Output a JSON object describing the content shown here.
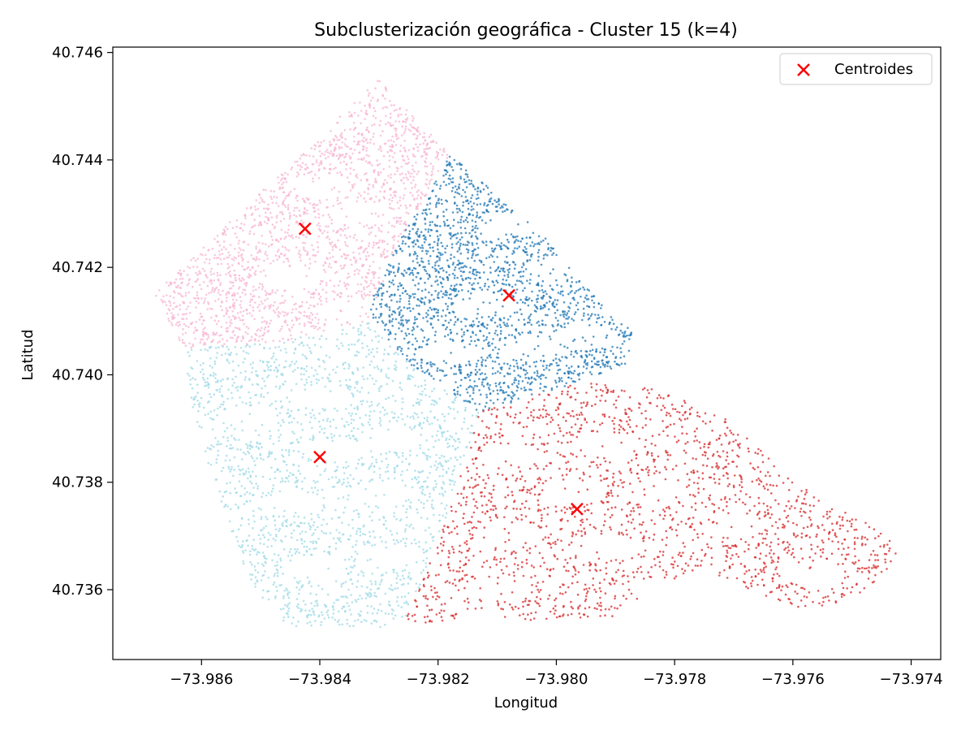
{
  "chart_data": {
    "type": "scatter",
    "title": "Subclusterización geográfica - Cluster 15 (k=4)",
    "xlabel": "Longitud",
    "ylabel": "Latitud",
    "xlim": [
      -73.9875,
      -73.9735
    ],
    "ylim": [
      40.7347,
      40.7461
    ],
    "x_ticks": [
      -73.986,
      -73.984,
      -73.982,
      -73.98,
      -73.978,
      -73.976,
      -73.974
    ],
    "x_tick_labels": [
      "−73.986",
      "−73.984",
      "−73.982",
      "−73.980",
      "−73.978",
      "−73.976",
      "−73.974"
    ],
    "y_ticks": [
      40.736,
      40.738,
      40.74,
      40.742,
      40.744,
      40.746
    ],
    "y_tick_labels": [
      "40.736",
      "40.738",
      "40.740",
      "40.742",
      "40.744",
      "40.746"
    ],
    "grid": false,
    "legend": {
      "position": "top-right",
      "entries": [
        "Centroides"
      ]
    },
    "clusters": [
      {
        "color": "#f7b6d2",
        "polygon": [
          [
            -73.9868,
            40.7415
          ],
          [
            -73.983,
            40.7455
          ],
          [
            -73.9818,
            40.7441
          ],
          [
            -73.9826,
            40.7426
          ],
          [
            -73.9832,
            40.741
          ],
          [
            -73.9847,
            40.7406
          ],
          [
            -73.9863,
            40.7405
          ]
        ],
        "holes": [
          [
            -73.984,
            40.7435
          ],
          [
            -73.9833,
            40.743
          ],
          [
            -73.9845,
            40.7418
          ],
          [
            -73.9835,
            40.7412
          ],
          [
            -73.9825,
            40.742
          ]
        ]
      },
      {
        "color": "#1f77b4",
        "polygon": [
          [
            -73.9818,
            40.7441
          ],
          [
            -73.9803,
            40.7427
          ],
          [
            -73.979,
            40.741
          ],
          [
            -73.9787,
            40.7409
          ],
          [
            -73.9788,
            40.7402
          ],
          [
            -73.9798,
            40.7398
          ],
          [
            -73.9813,
            40.7393
          ],
          [
            -73.9826,
            40.7403
          ],
          [
            -73.9832,
            40.7412
          ],
          [
            -73.9826,
            40.7426
          ]
        ],
        "holes": [
          [
            -73.9808,
            40.7428
          ],
          [
            -73.98,
            40.742
          ],
          [
            -73.9812,
            40.7413
          ],
          [
            -73.9805,
            40.7405
          ],
          [
            -73.9795,
            40.7407
          ],
          [
            -73.9818,
            40.7404
          ]
        ]
      },
      {
        "color": "#9edae5",
        "polygon": [
          [
            -73.9863,
            40.7405
          ],
          [
            -73.9847,
            40.7406
          ],
          [
            -73.9832,
            40.741
          ],
          [
            -73.9826,
            40.7403
          ],
          [
            -73.9813,
            40.7393
          ],
          [
            -73.9815,
            40.7386
          ],
          [
            -73.9817,
            40.7378
          ],
          [
            -73.9823,
            40.7361
          ],
          [
            -73.9826,
            40.7353
          ],
          [
            -73.9835,
            40.7353
          ],
          [
            -73.9846,
            40.7353
          ],
          [
            -73.9852,
            40.7362
          ],
          [
            -73.9858,
            40.738
          ],
          [
            -73.9862,
            40.7396
          ]
        ],
        "holes": [
          [
            -73.9852,
            40.7392
          ],
          [
            -73.984,
            40.7396
          ],
          [
            -73.9838,
            40.7386
          ],
          [
            -73.9828,
            40.7388
          ],
          [
            -73.9845,
            40.7376
          ],
          [
            -73.983,
            40.7378
          ],
          [
            -73.984,
            40.7364
          ],
          [
            -73.9828,
            40.7366
          ]
        ]
      },
      {
        "color": "#d62728",
        "polygon": [
          [
            -73.9813,
            40.7393
          ],
          [
            -73.9798,
            40.7398
          ],
          [
            -73.9788,
            40.7399
          ],
          [
            -73.9773,
            40.7393
          ],
          [
            -73.9769,
            40.739
          ],
          [
            -73.976,
            40.738
          ],
          [
            -73.9748,
            40.7373
          ],
          [
            -73.9742,
            40.7368
          ],
          [
            -73.9745,
            40.7362
          ],
          [
            -73.975,
            40.7358
          ],
          [
            -73.976,
            40.7356
          ],
          [
            -73.9775,
            40.7364
          ],
          [
            -73.979,
            40.7355
          ],
          [
            -73.98,
            40.7354
          ],
          [
            -73.9815,
            40.7355
          ],
          [
            -73.9826,
            40.7353
          ],
          [
            -73.9823,
            40.7361
          ],
          [
            -73.9817,
            40.7378
          ],
          [
            -73.9815,
            40.7386
          ]
        ],
        "holes": [
          [
            -73.9808,
            40.7385
          ],
          [
            -73.9792,
            40.7387
          ],
          [
            -73.9797,
            40.7378
          ],
          [
            -73.9783,
            40.7378
          ],
          [
            -73.9808,
            40.737
          ],
          [
            -73.9792,
            40.7368
          ],
          [
            -73.981,
            40.736
          ],
          [
            -73.9782,
            40.736
          ],
          [
            -73.977,
            40.7372
          ],
          [
            -73.9757,
            40.7363
          ]
        ]
      }
    ],
    "centroids": {
      "name": "Centroides",
      "color": "#ff0000",
      "points": [
        {
          "x": -73.98425,
          "y": 40.74272
        },
        {
          "x": -73.9808,
          "y": 40.74148
        },
        {
          "x": -73.984,
          "y": 40.73847
        },
        {
          "x": -73.97965,
          "y": 40.7375
        }
      ]
    }
  }
}
